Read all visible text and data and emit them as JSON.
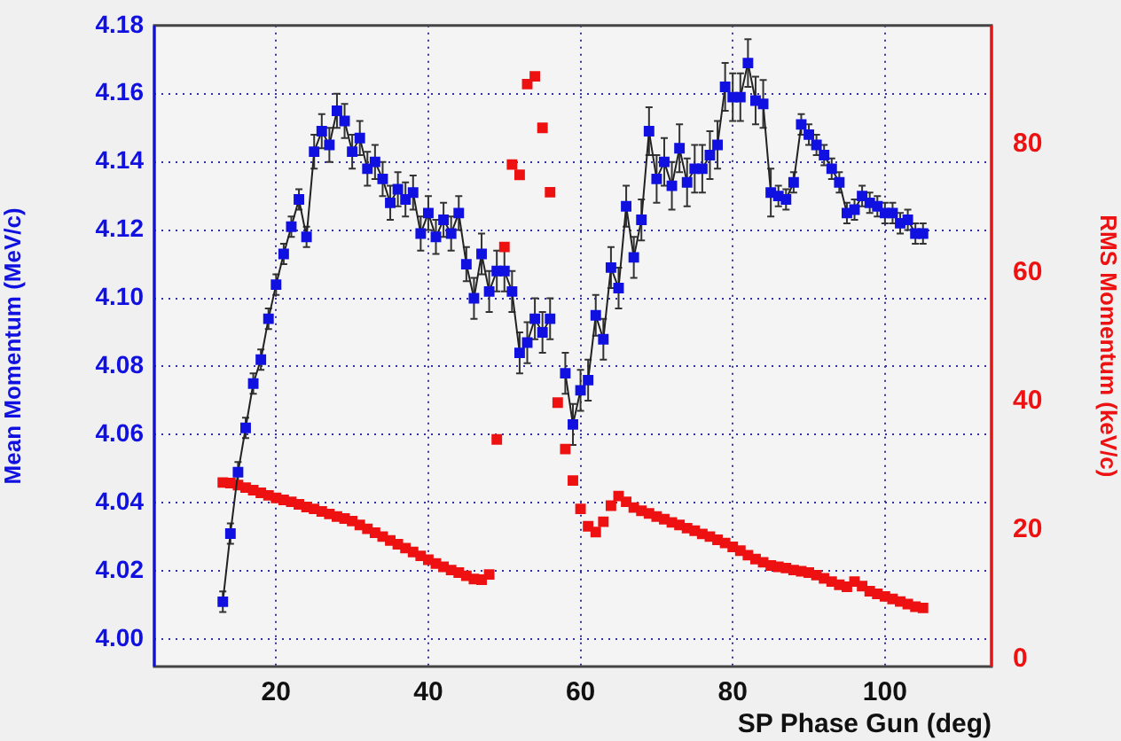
{
  "chart_data": {
    "type": "line",
    "xlabel": "SP Phase Gun (deg)",
    "ylabel": "Mean Momentum (MeV/c)",
    "y2label": "RMS Momentum (keV/c)",
    "xlim": [
      4,
      114
    ],
    "xticks": [
      20,
      40,
      60,
      80,
      100
    ],
    "ylim": [
      3.992,
      4.18
    ],
    "yticks": [
      {
        "value": 4.0,
        "label": "4.00"
      },
      4.02,
      4.04,
      4.06,
      4.08,
      {
        "value": 4.1,
        "label": "4.10"
      },
      4.12,
      4.14,
      4.16,
      4.18
    ],
    "y2lim": [
      -1.2,
      98.4
    ],
    "y2ticks": [
      0,
      20,
      40,
      60,
      80
    ],
    "grid": true,
    "legend": false,
    "marker": "square",
    "line_style": "solid",
    "series": [
      {
        "color": "#1010e0",
        "x": [
          13,
          14,
          15,
          16,
          17,
          18,
          19,
          20,
          21,
          22,
          23,
          24,
          25,
          26,
          27,
          28,
          29,
          30,
          31,
          32,
          33,
          34,
          35,
          36,
          37,
          38,
          39,
          40,
          41,
          42,
          43,
          44,
          45,
          46,
          47,
          48,
          49,
          50,
          51,
          52,
          53,
          54,
          55,
          56,
          57,
          58,
          59,
          60,
          61,
          62,
          63,
          64,
          65,
          66,
          67,
          68,
          69,
          70,
          71,
          72,
          73,
          74,
          75,
          76,
          77,
          78,
          79,
          80,
          81,
          82,
          83,
          84,
          85,
          86,
          87,
          88,
          89,
          90,
          91,
          92,
          93,
          94,
          95,
          96,
          97,
          98,
          99,
          100,
          101,
          102,
          103,
          104,
          105
        ],
        "values": [
          4.011,
          4.031,
          4.049,
          4.062,
          4.075,
          4.082,
          4.094,
          4.104,
          4.113,
          4.121,
          4.129,
          4.118,
          4.143,
          4.149,
          4.145,
          4.155,
          4.152,
          4.143,
          4.147,
          4.138,
          4.14,
          4.135,
          4.128,
          4.132,
          4.129,
          4.131,
          4.119,
          4.125,
          4.118,
          4.123,
          4.119,
          4.125,
          4.11,
          4.1,
          4.113,
          4.102,
          4.108,
          4.108,
          4.102,
          4.084,
          4.087,
          4.094,
          4.09,
          4.094,
          null,
          4.078,
          4.063,
          4.073,
          4.076,
          4.095,
          4.088,
          4.109,
          4.103,
          4.127,
          4.112,
          4.123,
          4.149,
          4.135,
          4.14,
          4.133,
          4.144,
          4.134,
          4.138,
          4.138,
          4.142,
          4.145,
          4.162,
          4.159,
          4.159,
          4.169,
          4.158,
          4.157,
          4.131,
          4.13,
          4.129,
          4.134,
          4.151,
          4.148,
          4.145,
          4.142,
          4.138,
          4.134,
          4.125,
          4.126,
          4.13,
          4.128,
          4.127,
          4.125,
          4.125,
          4.122,
          4.123,
          4.119,
          4.119
        ],
        "errors": [
          0.003,
          0.003,
          0.003,
          0.003,
          0.003,
          0.003,
          0.003,
          0.003,
          0.003,
          0.003,
          0.003,
          0.003,
          0.005,
          0.005,
          0.005,
          0.005,
          0.005,
          0.005,
          0.005,
          0.005,
          0.005,
          0.005,
          0.005,
          0.005,
          0.005,
          0.005,
          0.005,
          0.005,
          0.005,
          0.005,
          0.005,
          0.005,
          0.005,
          0.006,
          0.006,
          0.006,
          0.006,
          0.006,
          0.006,
          0.006,
          0.006,
          0.006,
          0.006,
          0.006,
          null,
          0.006,
          0.006,
          0.006,
          0.006,
          0.006,
          0.006,
          0.006,
          0.006,
          0.006,
          0.006,
          0.006,
          0.007,
          0.007,
          0.007,
          0.007,
          0.007,
          0.007,
          0.007,
          0.007,
          0.007,
          0.007,
          0.007,
          0.007,
          0.007,
          0.007,
          0.007,
          0.007,
          0.007,
          0.003,
          0.003,
          0.003,
          0.003,
          0.003,
          0.003,
          0.003,
          0.003,
          0.003,
          0.003,
          0.003,
          0.003,
          0.003,
          0.003,
          0.003,
          0.003,
          0.003,
          0.003,
          0.003,
          0.003
        ]
      },
      {
        "type": "scatter",
        "axis": "y2",
        "color": "#ee1111",
        "x": [
          13,
          14,
          15,
          16,
          17,
          18,
          19,
          20,
          21,
          22,
          23,
          24,
          25,
          26,
          27,
          28,
          29,
          30,
          31,
          32,
          33,
          34,
          35,
          36,
          37,
          38,
          39,
          40,
          41,
          42,
          43,
          44,
          45,
          46,
          47,
          48,
          49,
          50,
          51,
          52,
          53,
          54,
          55,
          56,
          57,
          58,
          59,
          60,
          61,
          62,
          63,
          64,
          65,
          66,
          67,
          68,
          69,
          70,
          71,
          72,
          73,
          74,
          75,
          76,
          77,
          78,
          79,
          80,
          81,
          82,
          83,
          84,
          85,
          86,
          87,
          88,
          89,
          90,
          91,
          92,
          93,
          94,
          95,
          96,
          97,
          98,
          99,
          100,
          101,
          102,
          103,
          104,
          105
        ],
        "values": [
          27.4,
          27.3,
          27.0,
          26.6,
          26.2,
          25.8,
          25.4,
          25.0,
          24.7,
          24.4,
          24.0,
          23.6,
          23.3,
          22.9,
          22.5,
          22.1,
          21.8,
          21.4,
          20.8,
          20.2,
          19.6,
          19.0,
          18.4,
          17.8,
          17.2,
          16.6,
          16.0,
          15.4,
          14.8,
          14.3,
          13.8,
          13.4,
          12.9,
          12.4,
          12.3,
          13.1,
          34.1,
          64.0,
          76.8,
          75.2,
          89.3,
          90.5,
          82.5,
          72.5,
          39.8,
          32.6,
          27.7,
          23.3,
          20.6,
          19.7,
          21.3,
          23.8,
          25.3,
          24.4,
          23.5,
          23.0,
          22.6,
          22.1,
          21.7,
          21.2,
          20.8,
          20.3,
          19.9,
          19.4,
          19.0,
          18.5,
          18.0,
          17.4,
          16.8,
          16.1,
          15.5,
          15.0,
          14.5,
          14.3,
          14.1,
          13.8,
          13.6,
          13.4,
          13.0,
          12.5,
          12.0,
          11.5,
          11.2,
          12.0,
          11.3,
          10.5,
          10.1,
          9.7,
          9.3,
          8.9,
          8.5,
          8.1,
          7.9
        ]
      }
    ]
  }
}
